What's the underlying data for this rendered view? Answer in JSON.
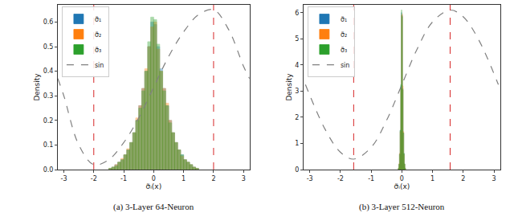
{
  "chart_data": [
    {
      "type": "histogram",
      "caption": "(a) 3-Layer 64-Neuron",
      "x_label": "σ̃ᵢ(x)",
      "y_label": "Density",
      "bins": [
        -1.5,
        -1.4,
        -1.3,
        -1.2,
        -1.1,
        -1.0,
        -0.9,
        -0.8,
        -0.7,
        -0.6,
        -0.5,
        -0.4,
        -0.3,
        -0.2,
        -0.1,
        0.0,
        0.1,
        0.2,
        0.3,
        0.4,
        0.5,
        0.6,
        0.7,
        0.8,
        0.9,
        1.0,
        1.1,
        1.2,
        1.3,
        1.4,
        1.5
      ],
      "series": [
        {
          "name": "σ̃₁",
          "color": "#1f77b4",
          "values": [
            0.005,
            0.01,
            0.02,
            0.03,
            0.04,
            0.06,
            0.08,
            0.11,
            0.15,
            0.2,
            0.26,
            0.33,
            0.4,
            0.5,
            0.6,
            0.59,
            0.5,
            0.41,
            0.33,
            0.26,
            0.2,
            0.15,
            0.11,
            0.08,
            0.06,
            0.04,
            0.03,
            0.02,
            0.01,
            0.005
          ]
        },
        {
          "name": "σ̃₂",
          "color": "#ff7f0e",
          "values": [
            0.005,
            0.01,
            0.02,
            0.03,
            0.045,
            0.06,
            0.085,
            0.11,
            0.15,
            0.21,
            0.26,
            0.33,
            0.41,
            0.5,
            0.58,
            0.6,
            0.49,
            0.4,
            0.33,
            0.27,
            0.2,
            0.15,
            0.11,
            0.08,
            0.055,
            0.04,
            0.03,
            0.02,
            0.01,
            0.005
          ]
        },
        {
          "name": "σ̃₃",
          "color": "#2ca02c",
          "values": [
            0.005,
            0.01,
            0.015,
            0.03,
            0.04,
            0.06,
            0.08,
            0.11,
            0.15,
            0.2,
            0.25,
            0.32,
            0.4,
            0.52,
            0.62,
            0.61,
            0.51,
            0.4,
            0.32,
            0.26,
            0.19,
            0.15,
            0.11,
            0.08,
            0.06,
            0.04,
            0.03,
            0.02,
            0.01,
            0.005
          ]
        },
        {
          "name": "sin",
          "type": "line",
          "color": "#808080",
          "line_style": "dashed",
          "x": [
            -3.2,
            -3,
            -2.5,
            -2,
            -1.5,
            -1,
            -0.5,
            0,
            0.5,
            1,
            1.5,
            2,
            2.5,
            3,
            3.2
          ],
          "values": [
            0.37,
            0.3,
            0.1,
            0.02,
            0.04,
            0.11,
            0.21,
            0.335,
            0.46,
            0.56,
            0.63,
            0.65,
            0.57,
            0.42,
            0.37
          ]
        }
      ],
      "reference_lines": {
        "x": [
          -2,
          2
        ],
        "color": "#d62728",
        "line_style": "dashed"
      },
      "xlim": [
        -3.2,
        3.2
      ],
      "xticks": [
        -3,
        -2,
        -1,
        0,
        1,
        2,
        3
      ],
      "ylim": [
        0,
        0.67
      ],
      "yticks": [
        {
          "value": 0,
          "label": "0.0"
        },
        0.1,
        0.2,
        0.3,
        0.4,
        0.5,
        0.6
      ],
      "grid": false,
      "legend": "upper left"
    },
    {
      "type": "histogram",
      "caption": "(b) 3-Layer 512-Neuron",
      "x_label": "σ̃ᵢ(x)",
      "y_label": "Density",
      "bins": [
        -0.12,
        -0.1,
        -0.08,
        -0.06,
        -0.04,
        -0.02,
        0.0,
        0.02,
        0.04,
        0.06,
        0.08,
        0.1,
        0.12
      ],
      "series": [
        {
          "name": "σ̃₁",
          "color": "#1f77b4",
          "values": [
            0.05,
            0.2,
            0.6,
            1.5,
            3.2,
            6.0,
            5.9,
            3.1,
            1.4,
            0.6,
            0.2,
            0.05
          ]
        },
        {
          "name": "σ̃₂",
          "color": "#ff7f0e",
          "values": [
            0.05,
            0.22,
            0.62,
            1.45,
            3.1,
            5.9,
            5.95,
            3.2,
            1.45,
            0.58,
            0.2,
            0.05
          ]
        },
        {
          "name": "σ̃₃",
          "color": "#2ca02c",
          "values": [
            0.04,
            0.2,
            0.58,
            1.5,
            3.25,
            6.1,
            5.85,
            3.05,
            1.4,
            0.62,
            0.22,
            0.05
          ]
        },
        {
          "name": "sin",
          "type": "line",
          "color": "#808080",
          "line_style": "dashed",
          "x": [
            -3.14,
            -2.5,
            -2,
            -1.57,
            -1,
            -0.5,
            0,
            0.5,
            1,
            1.57,
            2,
            2.5,
            3.14
          ],
          "values": [
            3.25,
            1.54,
            0.66,
            0.4,
            0.85,
            1.88,
            3.25,
            4.62,
            5.65,
            6.1,
            5.84,
            4.96,
            3.25
          ]
        }
      ],
      "reference_lines": {
        "x": [
          -1.57,
          1.57
        ],
        "color": "#d62728",
        "line_style": "dashed"
      },
      "xlim": [
        -3.2,
        3.2
      ],
      "xticks": [
        -3,
        -2,
        -1,
        0,
        1,
        2,
        3
      ],
      "ylim": [
        0,
        6.3
      ],
      "yticks": [
        0,
        1,
        2,
        3,
        4,
        5,
        6
      ],
      "grid": false,
      "legend": "upper left"
    }
  ]
}
